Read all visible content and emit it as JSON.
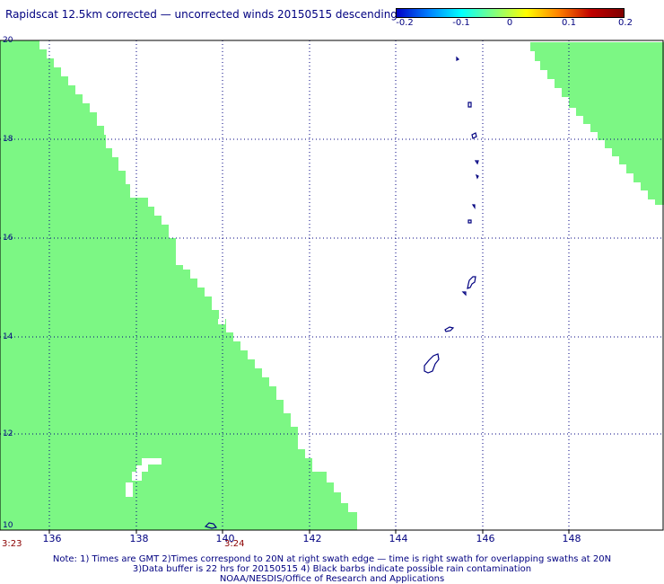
{
  "title": "Rapidscat 12.5km corrected — uncorrected winds 20150515 descending",
  "colorbar": {
    "labels": [
      "-0.2",
      "-0.1",
      "0",
      "0.1",
      "0.2"
    ],
    "colors": [
      "#0000c8",
      "#0080ff",
      "#00ffff",
      "#80ff80",
      "#ffff00",
      "#ff8000",
      "#c00000",
      "#800000"
    ]
  },
  "axes": {
    "lat_labels": [
      "20",
      "18",
      "16",
      "14",
      "12",
      "10"
    ],
    "lon_labels": [
      "136",
      "138",
      "140",
      "142",
      "144",
      "146",
      "148"
    ]
  },
  "times": {
    "left": "3:23",
    "mid": "3:24"
  },
  "notes": {
    "line1": "Note: 1) Times are GMT 2)Times correspond to 20N at right swath edge — time is right swath for overlapping swaths at 20N",
    "line2": "3)Data buffer is 22 hrs for 20150515 4) Black barbs indicate possible rain contamination",
    "line3": "NOAA/NESDIS/Office of Research and Applications"
  },
  "colors": {
    "swath": "#7cf784",
    "land_outline": "#000080",
    "grid": "#000080"
  }
}
